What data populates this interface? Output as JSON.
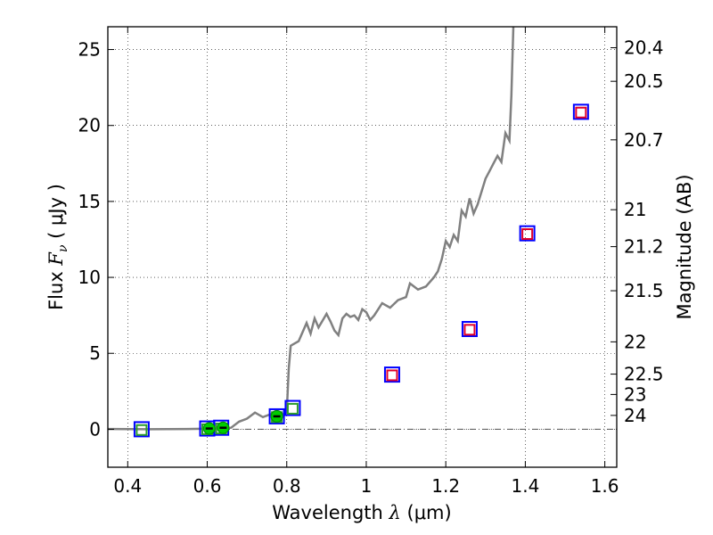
{
  "chart_data": {
    "type": "scatter",
    "xlabel": {
      "prefix": "Wavelength  ",
      "symbol": "λ",
      "unit": " (μm)"
    },
    "ylabel": {
      "prefix": "Flux  ",
      "symbol": "F",
      "sub": "ν",
      "unit": "  ( μJy )"
    },
    "y2label": "Magnitude (AB)",
    "xlim": [
      0.35,
      1.63
    ],
    "ylim": [
      -2.5,
      26.5
    ],
    "grid": true,
    "x_ticks": [
      0.4,
      0.6,
      0.8,
      1.0,
      1.2,
      1.4,
      1.6
    ],
    "x_tick_labels": [
      "0.4",
      "0.6",
      "0.8",
      "1",
      "1.2",
      "1.4",
      "1.6"
    ],
    "y_ticks": [
      0,
      5,
      10,
      15,
      20,
      25
    ],
    "y_tick_labels": [
      "0",
      "5",
      "10",
      "15",
      "20",
      "25"
    ],
    "y2_ticks": [
      {
        "mag": 20.4,
        "label": "20.4"
      },
      {
        "mag": 20.5,
        "label": "20.5"
      },
      {
        "mag": 20.7,
        "label": "20.7"
      },
      {
        "mag": 21,
        "label": "21"
      },
      {
        "mag": 21.2,
        "label": "21.2"
      },
      {
        "mag": 21.5,
        "label": "21.5"
      },
      {
        "mag": 22,
        "label": "22"
      },
      {
        "mag": 22.5,
        "label": "22.5"
      },
      {
        "mag": 23,
        "label": "23"
      },
      {
        "mag": 24,
        "label": "24"
      }
    ],
    "template_color": "#808080",
    "template_spectrum": [
      [
        0.35,
        0.02
      ],
      [
        0.45,
        0.0
      ],
      [
        0.55,
        0.02
      ],
      [
        0.62,
        0.05
      ],
      [
        0.66,
        0.1
      ],
      [
        0.68,
        0.5
      ],
      [
        0.7,
        0.7
      ],
      [
        0.72,
        1.1
      ],
      [
        0.74,
        0.8
      ],
      [
        0.76,
        1.0
      ],
      [
        0.78,
        0.9
      ],
      [
        0.8,
        1.1
      ],
      [
        0.805,
        4.0
      ],
      [
        0.81,
        5.5
      ],
      [
        0.83,
        5.8
      ],
      [
        0.85,
        7.0
      ],
      [
        0.86,
        6.3
      ],
      [
        0.87,
        7.3
      ],
      [
        0.88,
        6.7
      ],
      [
        0.9,
        7.6
      ],
      [
        0.91,
        7.1
      ],
      [
        0.92,
        6.5
      ],
      [
        0.93,
        6.2
      ],
      [
        0.94,
        7.3
      ],
      [
        0.95,
        7.6
      ],
      [
        0.96,
        7.4
      ],
      [
        0.97,
        7.5
      ],
      [
        0.98,
        7.2
      ],
      [
        0.99,
        7.9
      ],
      [
        1.0,
        7.7
      ],
      [
        1.01,
        7.2
      ],
      [
        1.02,
        7.5
      ],
      [
        1.04,
        8.3
      ],
      [
        1.06,
        8.0
      ],
      [
        1.08,
        8.5
      ],
      [
        1.1,
        8.7
      ],
      [
        1.11,
        9.6
      ],
      [
        1.13,
        9.2
      ],
      [
        1.15,
        9.4
      ],
      [
        1.17,
        10.0
      ],
      [
        1.18,
        10.4
      ],
      [
        1.19,
        11.2
      ],
      [
        1.2,
        12.4
      ],
      [
        1.21,
        12.0
      ],
      [
        1.22,
        12.8
      ],
      [
        1.23,
        12.4
      ],
      [
        1.24,
        14.4
      ],
      [
        1.25,
        14.0
      ],
      [
        1.26,
        15.2
      ],
      [
        1.27,
        14.2
      ],
      [
        1.28,
        14.8
      ],
      [
        1.3,
        16.5
      ],
      [
        1.31,
        17.0
      ],
      [
        1.32,
        17.5
      ],
      [
        1.33,
        18.0
      ],
      [
        1.34,
        17.6
      ],
      [
        1.35,
        19.5
      ],
      [
        1.36,
        19.0
      ],
      [
        1.365,
        22.0
      ],
      [
        1.37,
        26.5
      ]
    ],
    "series": [
      {
        "marker": "square",
        "stroke": "#0000ff",
        "size": "large",
        "points": [
          [
            0.435,
            0.0
          ],
          [
            0.6,
            0.05
          ],
          [
            0.635,
            0.1
          ],
          [
            0.775,
            0.85
          ],
          [
            0.815,
            1.4
          ],
          [
            1.065,
            3.6
          ],
          [
            1.26,
            6.6
          ],
          [
            1.405,
            12.9
          ],
          [
            1.54,
            20.9
          ]
        ]
      },
      {
        "marker": "square",
        "stroke": "#2e9c2e",
        "size": "small",
        "points": [
          [
            0.435,
            -0.05
          ],
          [
            0.6,
            0.0
          ],
          [
            0.635,
            0.05
          ],
          [
            0.775,
            0.8
          ],
          [
            0.815,
            1.35
          ]
        ]
      },
      {
        "marker": "square",
        "stroke": "#e0002a",
        "size": "small",
        "points": [
          [
            1.065,
            3.55
          ],
          [
            1.26,
            6.55
          ],
          [
            1.405,
            12.85
          ],
          [
            1.54,
            20.85
          ]
        ]
      },
      {
        "marker": "circle",
        "fill": "#00cc00",
        "errorbar": true,
        "points": [
          [
            0.605,
            0.05
          ],
          [
            0.64,
            0.1
          ],
          [
            0.775,
            0.85
          ]
        ]
      }
    ]
  }
}
